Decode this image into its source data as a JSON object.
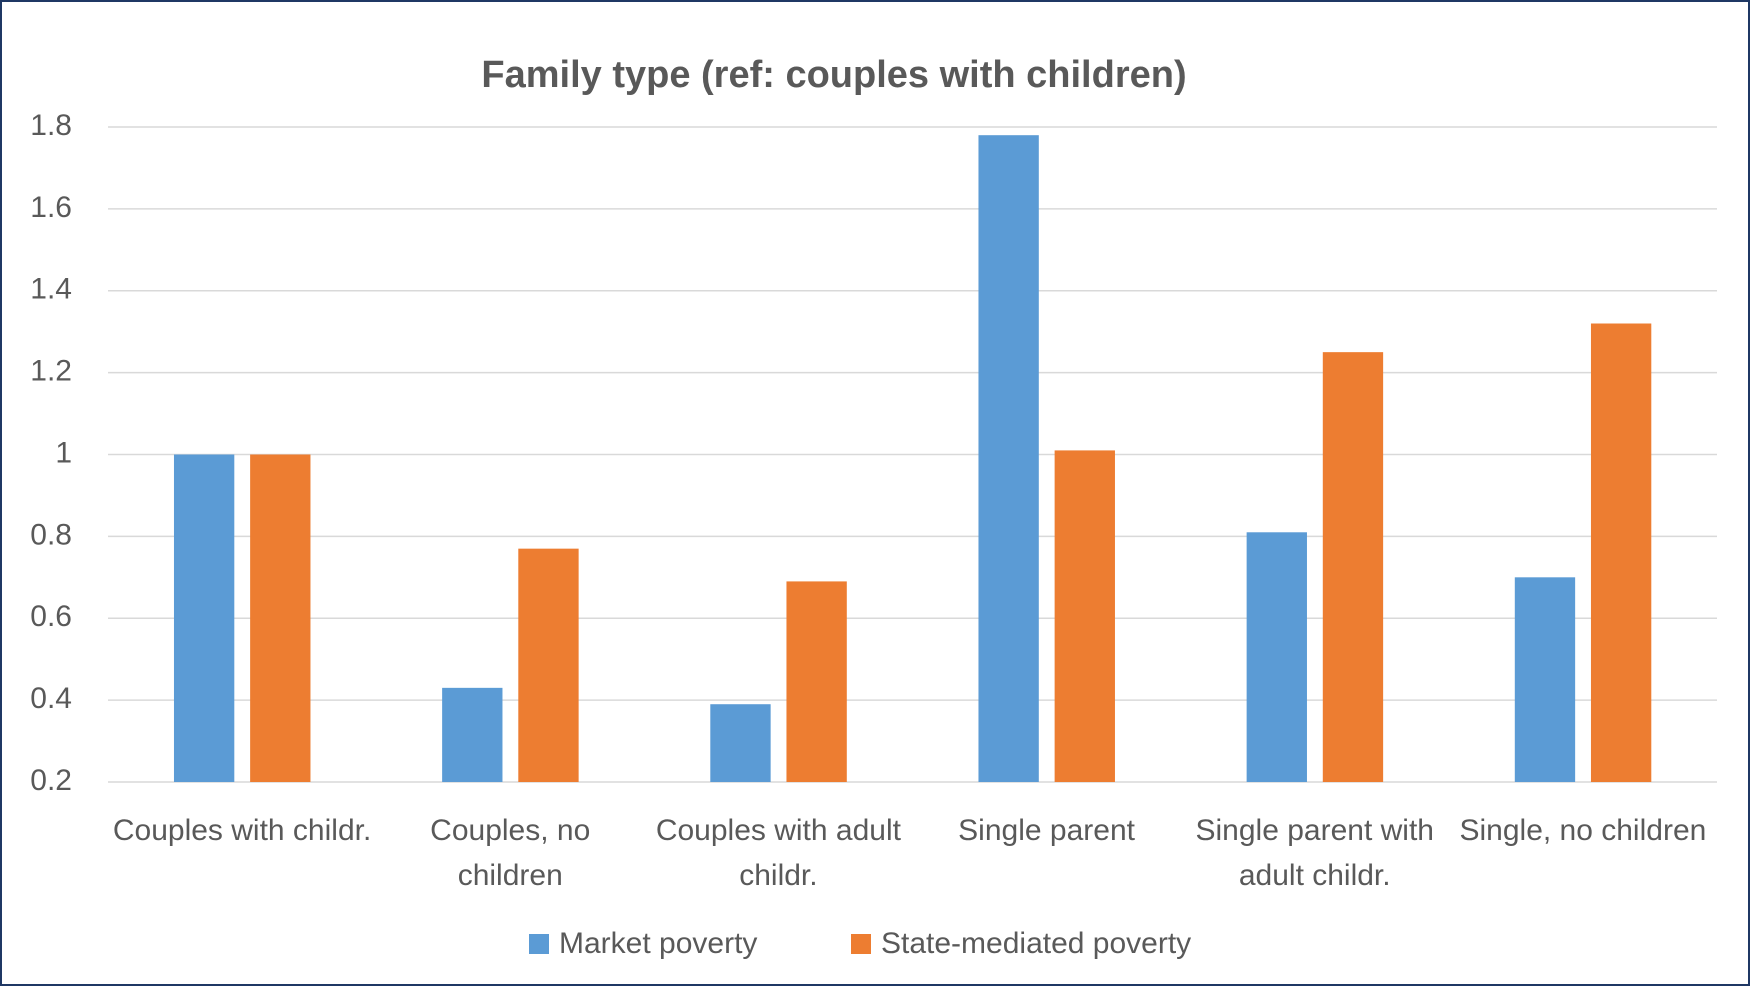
{
  "chart_data": {
    "type": "bar",
    "title": "Family type (ref: couples with children)",
    "categories": [
      "Couples with childr.",
      "Couples, no children",
      "Couples with adult childr.",
      "Single parent",
      "Single parent with adult childr.",
      "Single, no children"
    ],
    "series": [
      {
        "name": "Market poverty",
        "color": "#5b9bd5",
        "values": [
          1.0,
          0.43,
          0.39,
          1.78,
          0.81,
          0.7
        ]
      },
      {
        "name": "State-mediated poverty",
        "color": "#ed7d31",
        "values": [
          1.0,
          0.77,
          0.69,
          1.01,
          1.25,
          1.32
        ]
      }
    ],
    "ylim": [
      0.2,
      1.8
    ],
    "yticks": [
      0.2,
      0.4,
      0.6,
      0.8,
      1,
      1.2,
      1.4,
      1.6,
      1.8
    ],
    "grid": true,
    "legend": "bottom"
  }
}
